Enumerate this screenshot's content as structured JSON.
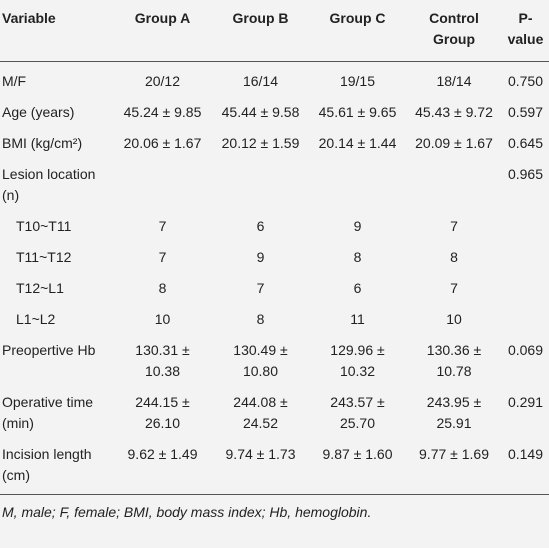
{
  "table": {
    "header": [
      "Variable",
      "Group A",
      "Group B",
      "Group C",
      "Control Group",
      "P-value"
    ],
    "rows": [
      [
        "M/F",
        "20/12",
        "16/14",
        "19/15",
        "18/14",
        "0.750"
      ],
      [
        "Age (years)",
        "45.24 ± 9.85",
        "45.44 ± 9.58",
        "45.61 ± 9.65",
        "45.43 ± 9.72",
        "0.597"
      ],
      [
        "BMI (kg/cm²)",
        "20.06 ± 1.67",
        "20.12 ± 1.59",
        "20.14 ± 1.44",
        "20.09 ± 1.67",
        "0.645"
      ],
      [
        "Lesion location (n)",
        "",
        "",
        "",
        "",
        "0.965"
      ],
      [
        "T10~T11",
        "7",
        "6",
        "9",
        "7",
        ""
      ],
      [
        "T11~T12",
        "7",
        "9",
        "8",
        "8",
        ""
      ],
      [
        "T12~L1",
        "8",
        "7",
        "6",
        "7",
        ""
      ],
      [
        "L1~L2",
        "10",
        "8",
        "11",
        "10",
        ""
      ],
      [
        "Preopertive Hb",
        "130.31 ± 10.38",
        "130.49 ± 10.80",
        "129.96 ± 10.32",
        "130.36 ± 10.78",
        "0.069"
      ],
      [
        "Operative time (min)",
        "244.15 ± 26.10",
        "244.08 ± 24.52",
        "243.57 ± 25.70",
        "243.95 ± 25.91",
        "0.291"
      ],
      [
        "Incision length (cm)",
        "9.62 ± 1.49",
        "9.74 ± 1.73",
        "9.87 ± 1.60",
        "9.77 ± 1.69",
        "0.149"
      ]
    ]
  },
  "footnote": "M, male; F, female; BMI, body mass index; Hb, hemoglobin."
}
